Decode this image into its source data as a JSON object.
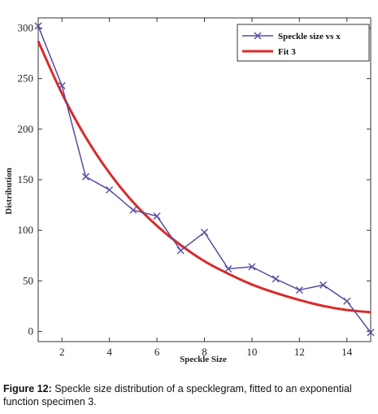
{
  "chart_data": {
    "type": "line",
    "title": "",
    "xlabel": "Speckle Size",
    "ylabel": "Distribution",
    "xlim": [
      1,
      15
    ],
    "ylim": [
      -10,
      310
    ],
    "xticks": [
      2,
      4,
      6,
      8,
      10,
      12,
      14
    ],
    "yticks": [
      0,
      50,
      100,
      150,
      200,
      250,
      300
    ],
    "grid": false,
    "legend_position": "top-right",
    "series": [
      {
        "name": "Speckle size vs x",
        "color": "#5b4a9e",
        "marker": "x",
        "x": [
          1,
          2,
          3,
          4,
          5,
          6,
          7,
          8,
          9,
          10,
          11,
          12,
          13,
          14,
          15
        ],
        "y": [
          302,
          243,
          153,
          140,
          120,
          114,
          80,
          98,
          62,
          64,
          52,
          41,
          46,
          30,
          -1
        ]
      },
      {
        "name": "Fit 3",
        "color": "#d92b2b",
        "marker": "none",
        "x": [
          1,
          2,
          3,
          4,
          5,
          6,
          7,
          8,
          9,
          10,
          11,
          12,
          13,
          14,
          15
        ],
        "y": [
          287,
          234,
          191,
          156,
          127,
          104,
          85,
          69,
          57,
          46,
          38,
          31,
          25,
          21,
          19
        ]
      }
    ]
  },
  "caption": {
    "label": "Figure 12:",
    "text": " Speckle size distribution of a specklegram, fitted to an exponential function specimen 3."
  }
}
